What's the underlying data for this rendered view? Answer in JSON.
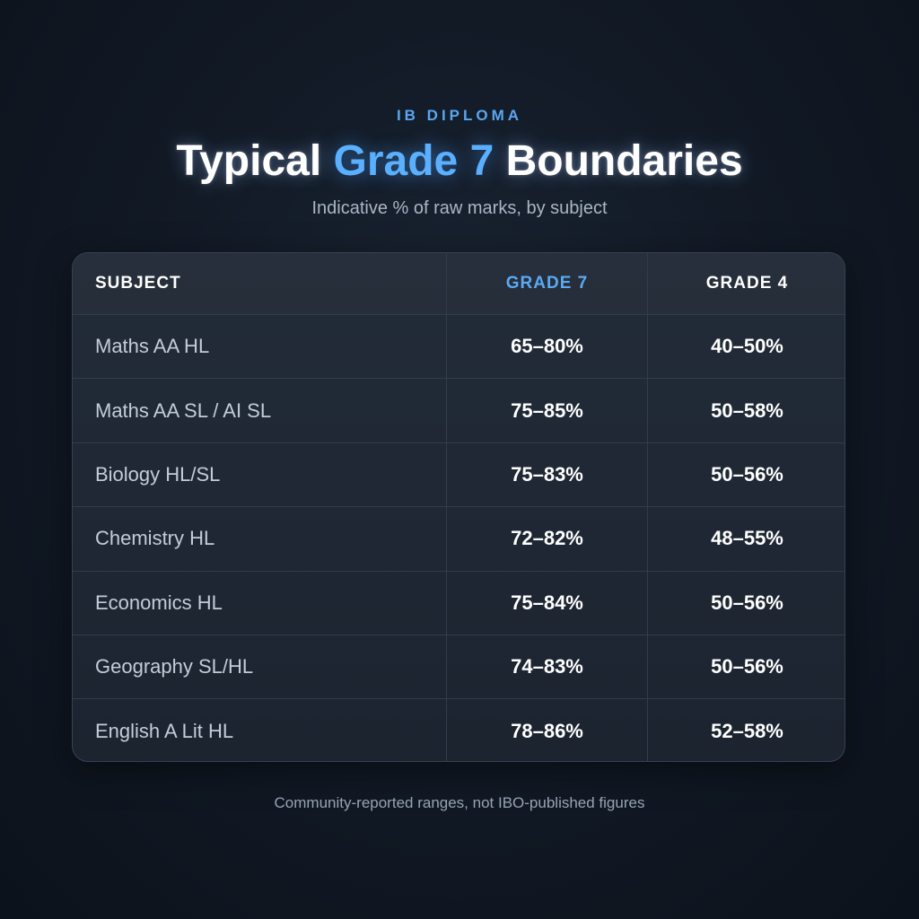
{
  "header": {
    "eyebrow": "IB DIPLOMA",
    "title_part1": "Typical ",
    "title_accent": "Grade 7",
    "title_part2": " Boundaries",
    "subtitle": "Indicative % of raw marks, by subject"
  },
  "chart_data": {
    "type": "table",
    "columns": [
      "SUBJECT",
      "GRADE 7",
      "GRADE 4"
    ],
    "rows": [
      {
        "subject": "Maths AA HL",
        "grade7": "65–80%",
        "grade4": "40–50%"
      },
      {
        "subject": "Maths AA SL / AI SL",
        "grade7": "75–85%",
        "grade4": "50–58%"
      },
      {
        "subject": "Biology HL/SL",
        "grade7": "75–83%",
        "grade4": "50–56%"
      },
      {
        "subject": "Chemistry HL",
        "grade7": "72–82%",
        "grade4": "48–55%"
      },
      {
        "subject": "Economics HL",
        "grade7": "75–84%",
        "grade4": "50–56%"
      },
      {
        "subject": "Geography SL/HL",
        "grade7": "74–83%",
        "grade4": "50–56%"
      },
      {
        "subject": "English A Lit HL",
        "grade7": "78–86%",
        "grade4": "52–58%"
      }
    ]
  },
  "footnote": "Community-reported ranges, not IBO-published figures",
  "colors": {
    "accent": "#5ab0ff",
    "background": "#121a26",
    "card": "#1f2834"
  }
}
